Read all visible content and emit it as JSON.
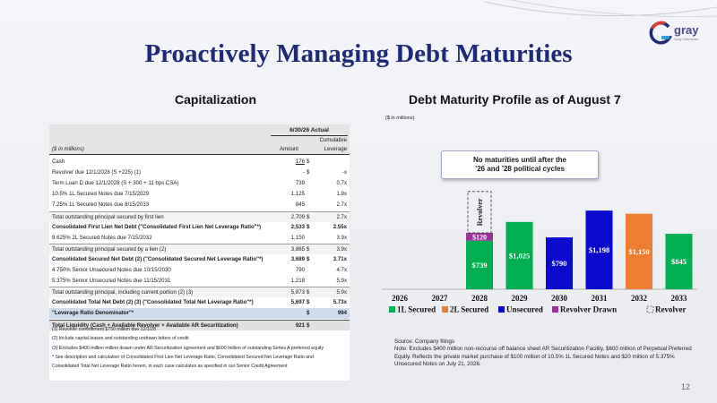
{
  "header": {
    "title": "Proactively Managing Debt Maturities",
    "logo_text": "gray",
    "logo_tagline": "Gray Television"
  },
  "colors": {
    "title_blue": "#1e2a78",
    "series_1l_secured": "#00b050",
    "series_2l_secured": "#ed7d31",
    "series_unsecured": "#0a0acd",
    "series_revolver_drawn": "#993399"
  },
  "capitalization": {
    "section_title": "Capitalization",
    "table": {
      "period_header": "6/30/26 Actual",
      "col_units": "($ in millions)",
      "col_amount": "Amount",
      "col_cum_1": "Cumulative",
      "col_cum_2": "Leverage",
      "rows": [
        {
          "label": "Cash",
          "dollar": "$",
          "amount": "176",
          "leverage": "",
          "style": "",
          "amount_ul": true
        },
        {
          "label": "Revolver due 12/1/2028 (S +225) (1)",
          "dollar": "$",
          "amount": "-",
          "leverage": "-x",
          "style": "",
          "amount_ul": false
        },
        {
          "label": "Term Loan D due 12/1/2028 (S + 300 + 11 bps CSA)",
          "dollar": "",
          "amount": "739",
          "leverage": "0.7x",
          "style": "",
          "amount_ul": false
        },
        {
          "label": "10.5% 1L Secured Notes due 7/15/2029",
          "dollar": "",
          "amount": "1,125",
          "leverage": "1.9x",
          "style": "",
          "amount_ul": false
        },
        {
          "label": "7.25% 1L Secured Notes due 8/15/2033",
          "dollar": "",
          "amount": "845",
          "leverage": "2.7x",
          "style": "",
          "amount_ul": false
        },
        {
          "label": "Total outstanding principal secured by first lien",
          "dollar": "$",
          "amount": "2,709",
          "leverage": "2.7x",
          "style": "sub",
          "amount_ul": false
        },
        {
          "label": "Consolidated First Lien Net Debt (\"Consolidated First Lien Net Leverage Ratio\"*)",
          "dollar": "$",
          "amount": "2,533",
          "leverage": "2.55x",
          "style": "bold",
          "amount_ul": false
        },
        {
          "label": "9.625% 2L Secured Notes due 7/15/2032",
          "dollar": "",
          "amount": "1,150",
          "leverage": "3.9x",
          "style": "",
          "amount_ul": false
        },
        {
          "label": "Total outstanding principal secured by a lien (2)",
          "dollar": "$",
          "amount": "3,865",
          "leverage": "3.9x",
          "style": "sub",
          "amount_ul": false
        },
        {
          "label": "Consolidated Secured Net Debt (2) (\"Consolidated Secured Net Leverage Ratio\"*)",
          "dollar": "$",
          "amount": "3,689",
          "leverage": "3.71x",
          "style": "bold",
          "amount_ul": false
        },
        {
          "label": "4.750% Senior Unsecured Notes due 10/15/2030",
          "dollar": "",
          "amount": "790",
          "leverage": "4.7x",
          "style": "",
          "amount_ul": false
        },
        {
          "label": "5.375% Senior Unsecured Notes due 11/15/2031",
          "dollar": "",
          "amount": "1,218",
          "leverage": "5.9x",
          "style": "",
          "amount_ul": false
        },
        {
          "label": "Total outstanding principal, including current portion (2) (3)",
          "dollar": "$",
          "amount": "5,873",
          "leverage": "5.9x",
          "style": "sub",
          "amount_ul": false
        },
        {
          "label": "Consolidated Total Net Debt (2) (3) (\"Consolidated Total Net Leverage Ratio\"*)",
          "dollar": "$",
          "amount": "5,697",
          "leverage": "5.73x",
          "style": "bold",
          "amount_ul": false
        },
        {
          "label": "\"Leverage Ratio Denominator\"*",
          "dollar": "$",
          "amount": "",
          "leverage": "994",
          "style": "hl",
          "amount_ul": false
        },
        {
          "label": "Total Liquidity (Cash + Available Revolver + Available AR Securitization)",
          "dollar": "$",
          "amount": "921",
          "leverage": "",
          "style": "hl2",
          "amount_ul": false
        }
      ],
      "notes": [
        "(1) Revolver commitment $750 million due 12/1/28",
        "(2) Include capital leases and outstanding undrawn letters of credit",
        "(3) Excludes $400 million million drawn under AR Securitization agreement and $600 million of outstanding Series A preferred equity",
        "* See description and calculation of Consolidated First Lien Net Leverage Ratio, Consolidated Secured Net Leverage Ratio and",
        "  Consolidated Total Net Leverage Ratio herein, in each case calculates as specified in our Senior Credit Agreement"
      ]
    }
  },
  "maturity": {
    "section_title": "Debt Maturity Profile as of August 7",
    "units_note": "($ in millions)",
    "callout_line1": "No maturities until after the",
    "callout_line2": "’26 and ’28 political cycles",
    "revolver_label": "Revolver"
  },
  "chart_data": {
    "type": "bar",
    "stacked": true,
    "categories": [
      "2026",
      "2027",
      "2028",
      "2029",
      "2030",
      "2031",
      "2032",
      "2033"
    ],
    "series": [
      {
        "name": "1L Secured",
        "color": "#00b050",
        "values": [
          0,
          0,
          739,
          1025,
          0,
          0,
          0,
          845
        ],
        "labels": [
          "",
          "",
          "$739",
          "$1,025",
          "",
          "",
          "",
          "$845"
        ]
      },
      {
        "name": "2L Secured",
        "color": "#ed7d31",
        "values": [
          0,
          0,
          0,
          0,
          0,
          0,
          1150,
          0
        ],
        "labels": [
          "",
          "",
          "",
          "",
          "",
          "",
          "$1,150",
          ""
        ]
      },
      {
        "name": "Unsecured",
        "color": "#0a0acd",
        "values": [
          0,
          0,
          0,
          0,
          790,
          1198,
          0,
          0
        ],
        "labels": [
          "",
          "",
          "",
          "",
          "$790",
          "$1,198",
          "",
          ""
        ]
      },
      {
        "name": "Revolver Drawn",
        "color": "#993399",
        "values": [
          0,
          0,
          120,
          0,
          0,
          0,
          0,
          0
        ],
        "labels": [
          "",
          "",
          "$120",
          "",
          "",
          "",
          "",
          ""
        ]
      }
    ],
    "undrawn_revolver": {
      "name": "Revolver",
      "category": "2028",
      "value": 630
    },
    "legend": [
      "1L Secured",
      "2L Secured",
      "Unsecured",
      "Revolver Drawn",
      "Revolver"
    ],
    "legend_position": "bottom",
    "ylim": [
      0,
      1500
    ],
    "grid": false
  },
  "footer": {
    "source_lines": [
      "Source: Company filings",
      "Note: Excludes $400 million non-recourse off balance sheet AR Securitization Facility, $600 million of Perpetual Preferred",
      "Equity. Reflects the private market purchase of $100 million of 10.5% 1L Secured Notes and $20 million of 5.375%",
      "Unsecured Notes on July 21, 2026."
    ],
    "page_number": "12"
  }
}
